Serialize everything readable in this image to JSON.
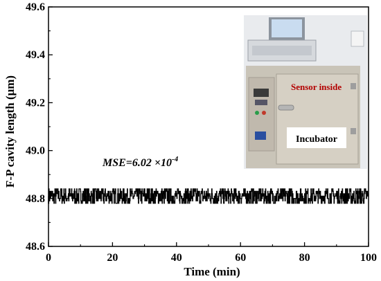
{
  "chart_data": {
    "type": "line",
    "xlabel": "Time (min)",
    "ylabel": "F-P cavity length (μm)",
    "xlim": [
      0,
      100
    ],
    "ylim": [
      48.6,
      49.6
    ],
    "xticks": [
      0,
      20,
      40,
      60,
      80,
      100
    ],
    "yticks": [
      48.6,
      48.8,
      49.0,
      49.2,
      49.4,
      49.6
    ],
    "ytick_labels": [
      "48.6",
      "48.8",
      "49.0",
      "49.2",
      "49.4",
      "49.6"
    ],
    "grid": false,
    "series": [
      {
        "color": "#000000",
        "mean": 48.81,
        "levels": [
          48.78,
          48.79,
          48.8,
          48.81,
          48.82,
          48.83,
          48.84
        ],
        "sample_interval_min": 0.1,
        "description_of_fluctuation": "dense step-like noise between 48.78 and 48.85"
      }
    ],
    "annotation": {
      "mse_text": "MSE=6.02 ×10",
      "mse_exp": "-4"
    },
    "inset": {
      "sensor_label": "Sensor inside",
      "incubator_label": "Incubator"
    }
  }
}
